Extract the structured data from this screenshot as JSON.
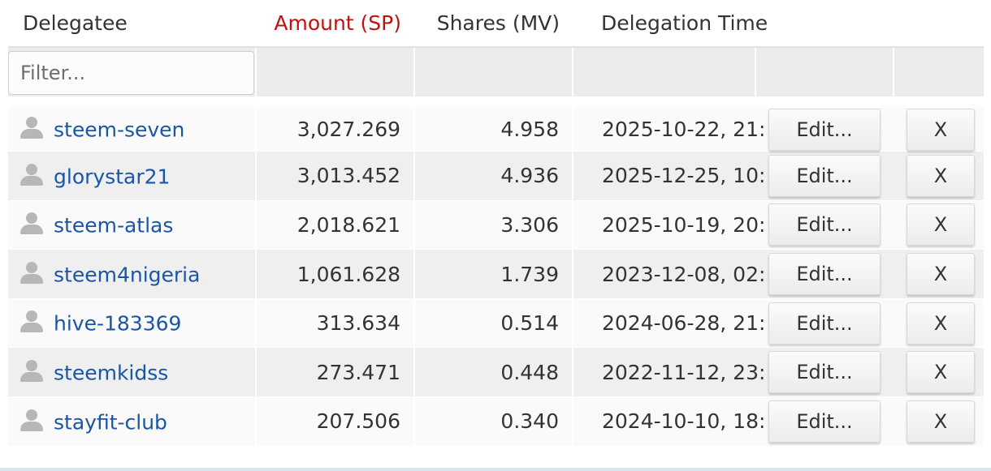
{
  "header": {
    "delegatee": "Delegatee",
    "amount": "Amount (SP)",
    "shares": "Shares (MV)",
    "time": "Delegation Time"
  },
  "filter": {
    "placeholder": "Filter...",
    "value": ""
  },
  "colors": {
    "amount_header": "#c01010",
    "link": "#1a56a6"
  },
  "icons": {
    "user": "user-icon"
  },
  "rows": [
    {
      "user": "steem-seven",
      "amount": "3,027.269",
      "shares": "4.958",
      "time": "2025-10-22, 21:",
      "edit": "Edit...",
      "remove": "X"
    },
    {
      "user": "glorystar21",
      "amount": "3,013.452",
      "shares": "4.936",
      "time": "2025-12-25, 10:",
      "edit": "Edit...",
      "remove": "X"
    },
    {
      "user": "steem-atlas",
      "amount": "2,018.621",
      "shares": "3.306",
      "time": "2025-10-19, 20:",
      "edit": "Edit...",
      "remove": "X"
    },
    {
      "user": "steem4nigeria",
      "amount": "1,061.628",
      "shares": "1.739",
      "time": "2023-12-08, 02:",
      "edit": "Edit...",
      "remove": "X"
    },
    {
      "user": "hive-183369",
      "amount": "313.634",
      "shares": "0.514",
      "time": "2024-06-28, 21:",
      "edit": "Edit...",
      "remove": "X"
    },
    {
      "user": "steemkidss",
      "amount": "273.471",
      "shares": "0.448",
      "time": "2022-11-12, 23:",
      "edit": "Edit...",
      "remove": "X"
    },
    {
      "user": "stayfit-club",
      "amount": "207.506",
      "shares": "0.340",
      "time": "2024-10-10, 18:",
      "edit": "Edit...",
      "remove": "X"
    }
  ]
}
